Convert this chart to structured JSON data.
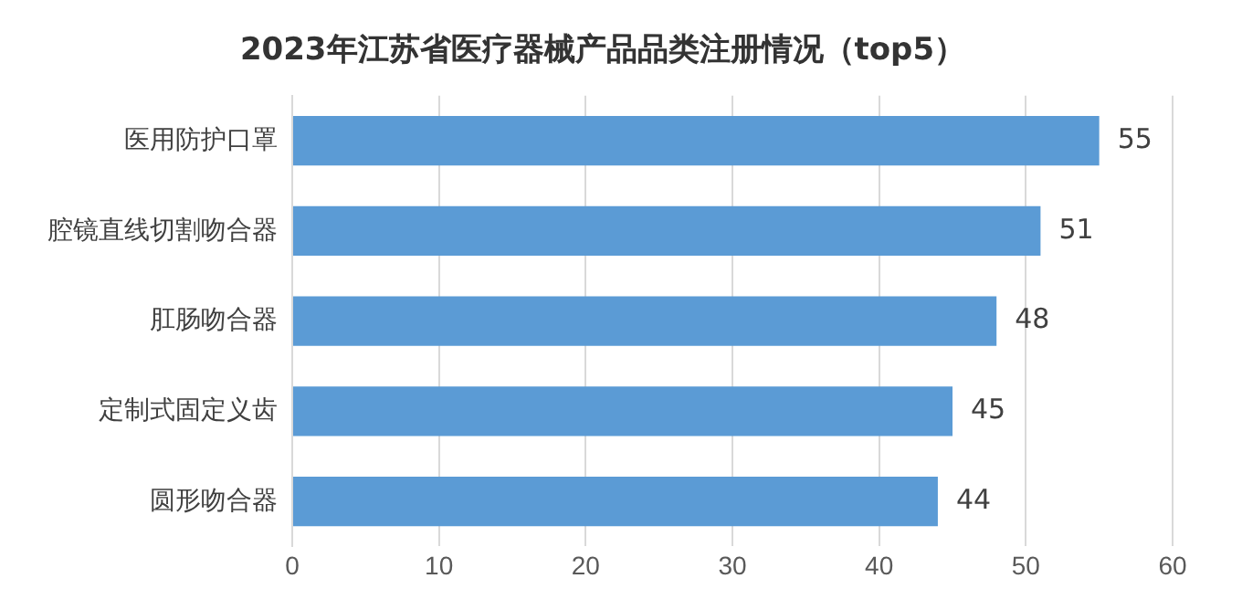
{
  "chart_data": {
    "type": "bar",
    "orientation": "horizontal",
    "title": "2023年江苏省医疗器械产品品类注册情况（top5）",
    "categories": [
      "医用防护口罩",
      "腔镜直线切割吻合器",
      "肛肠吻合器",
      "定制式固定义齿",
      "圆形吻合器"
    ],
    "values": [
      55,
      51,
      48,
      45,
      44
    ],
    "color": "#5b9bd5",
    "xlim": [
      0,
      60
    ],
    "xticks": [
      0,
      10,
      20,
      30,
      40,
      50,
      60
    ],
    "grid": "x",
    "legend": false,
    "data_labels": true
  }
}
